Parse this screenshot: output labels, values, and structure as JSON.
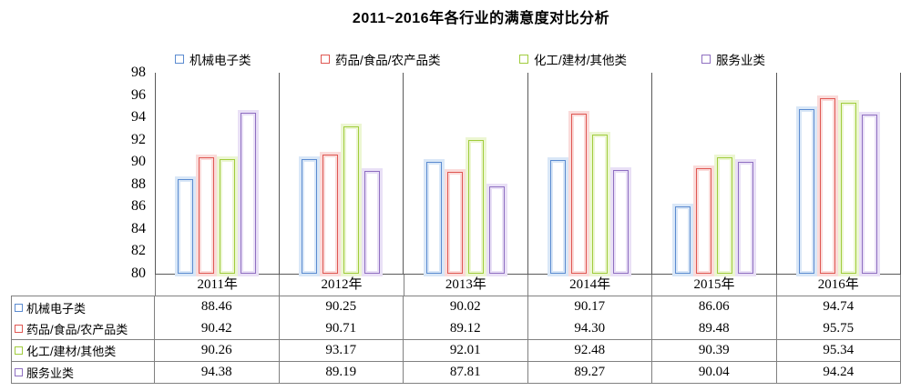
{
  "title": "2011~2016年各行业的满意度对比分析",
  "chart_data": {
    "type": "bar",
    "title": "2011~2016年各行业的满意度对比分析",
    "categories": [
      "2011年",
      "2012年",
      "2013年",
      "2014年",
      "2015年",
      "2016年"
    ],
    "series": [
      {
        "name": "机械电子类",
        "color": "#5B8BD0",
        "glow": "#D9E7F7",
        "values": [
          88.46,
          90.25,
          90.02,
          90.17,
          86.06,
          94.74
        ]
      },
      {
        "name": "药品/食品/农产品类",
        "color": "#DF5752",
        "glow": "#FADBDA",
        "values": [
          90.42,
          90.71,
          89.12,
          94.3,
          89.48,
          95.75
        ]
      },
      {
        "name": "化工/建材/其他类",
        "color": "#A0CC3C",
        "glow": "#ECF6D2",
        "values": [
          90.26,
          93.17,
          92.01,
          92.48,
          90.39,
          95.34
        ]
      },
      {
        "name": "服务业类",
        "color": "#8F6FC1",
        "glow": "#E9E0F6",
        "values": [
          94.38,
          89.19,
          87.81,
          89.27,
          90.04,
          94.24
        ]
      }
    ],
    "ylim": [
      80,
      98
    ],
    "y_step": 2,
    "y_tick_labels": [
      "98",
      "96",
      "94",
      "92",
      "90",
      "88",
      "86",
      "84",
      "82",
      "80"
    ],
    "grid": "vertical-category-separators-only",
    "legend_position": "top",
    "bar_style": "white-fill-colored-outline-with-glow",
    "data_table_shown": true,
    "value_format": "2-decimals"
  }
}
